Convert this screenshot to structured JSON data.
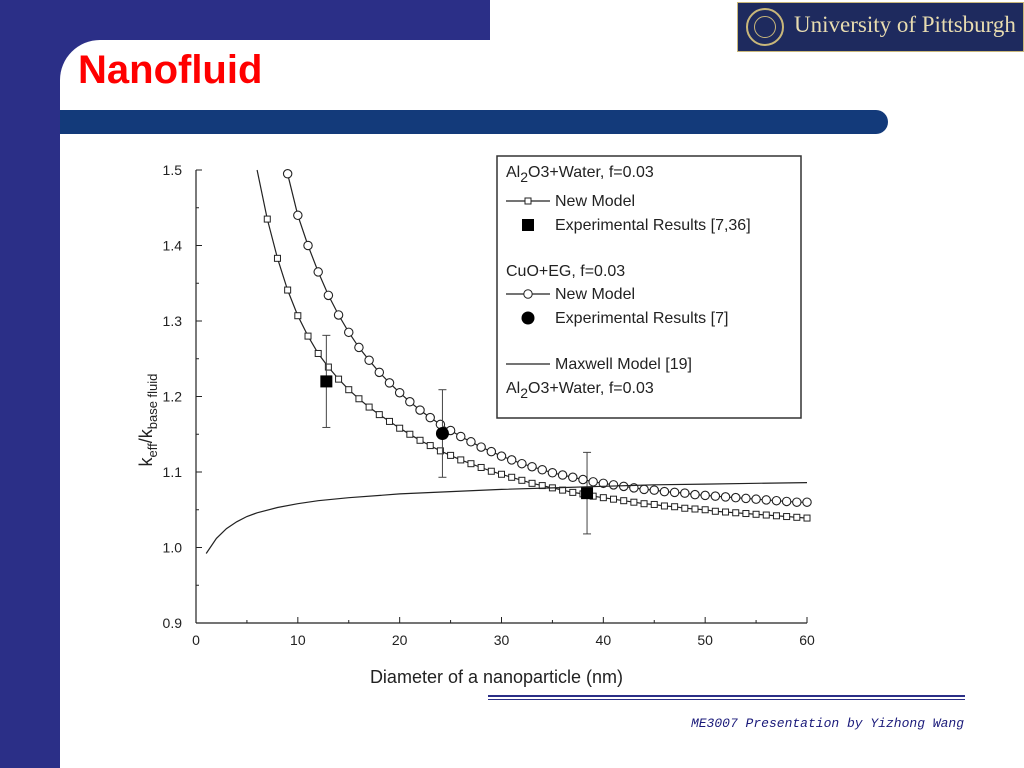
{
  "slide": {
    "title": "Nanofluid",
    "logo_text": "University of Pittsburgh",
    "footer": "ME3007 Presentation by Yizhong Wang"
  },
  "colors": {
    "frame": "#2b2f87",
    "title_bar": "#133a7a",
    "title": "#ff0000",
    "logo_bg": "#1e2a5e",
    "logo_text": "#e8dcb0",
    "footer_text": "#1a1a7a"
  },
  "chart_data": {
    "type": "scatter",
    "xlabel": "Diameter of a nanoparticle (nm)",
    "ylabel": "keff/kbase fluid",
    "xlim": [
      0,
      60
    ],
    "ylim": [
      0.9,
      1.5
    ],
    "xticks": [
      0,
      10,
      20,
      30,
      40,
      50,
      60
    ],
    "yticks": [
      0.9,
      1.0,
      1.1,
      1.2,
      1.3,
      1.4,
      1.5
    ],
    "xtick_labels": [
      "0",
      "10",
      "20",
      "30",
      "40",
      "50",
      "60"
    ],
    "ytick_labels": [
      "0.9",
      "1.0",
      "1.1",
      "1.2",
      "1.3",
      "1.4",
      "1.5"
    ],
    "grid": false,
    "legend_position": "top-right",
    "legend": [
      {
        "text": "Al2O3+Water, f=0.03",
        "kind": "heading"
      },
      {
        "text": "New Model",
        "kind": "line-square"
      },
      {
        "text": "Experimental Results [7,36]",
        "kind": "filled-square"
      },
      {
        "text": "CuO+EG, f=0.03",
        "kind": "heading"
      },
      {
        "text": "New Model",
        "kind": "line-circle"
      },
      {
        "text": "Experimental Results [7]",
        "kind": "filled-circle"
      },
      {
        "text": "Maxwell Model [19]",
        "kind": "line"
      },
      {
        "text": "Al2O3+Water, f=0.03",
        "kind": "heading"
      }
    ],
    "series": [
      {
        "name": "New Model",
        "group": "Al2O3+Water, f=0.03",
        "style": "line-square",
        "x": [
          6,
          7,
          8,
          9,
          10,
          11,
          12,
          13,
          14,
          15,
          16,
          17,
          18,
          19,
          20,
          21,
          22,
          23,
          24,
          25,
          26,
          27,
          28,
          29,
          30,
          31,
          32,
          33,
          34,
          35,
          36,
          37,
          38,
          39,
          40,
          41,
          42,
          43,
          44,
          45,
          46,
          47,
          48,
          49,
          50,
          51,
          52,
          53,
          54,
          55,
          56,
          57,
          58,
          59,
          60
        ],
        "y": [
          1.5,
          1.435,
          1.383,
          1.341,
          1.307,
          1.28,
          1.257,
          1.239,
          1.223,
          1.209,
          1.197,
          1.186,
          1.176,
          1.167,
          1.158,
          1.15,
          1.142,
          1.135,
          1.128,
          1.122,
          1.116,
          1.111,
          1.106,
          1.101,
          1.097,
          1.093,
          1.089,
          1.085,
          1.082,
          1.079,
          1.076,
          1.073,
          1.071,
          1.068,
          1.066,
          1.064,
          1.062,
          1.06,
          1.058,
          1.057,
          1.055,
          1.054,
          1.052,
          1.051,
          1.05,
          1.048,
          1.047,
          1.046,
          1.045,
          1.044,
          1.043,
          1.042,
          1.041,
          1.04,
          1.039
        ],
        "markers_x": [
          7,
          8,
          9,
          10,
          11,
          12,
          13,
          14,
          15,
          16,
          17,
          18,
          19,
          20,
          21,
          22,
          23,
          24,
          25,
          26,
          27,
          28,
          29,
          30,
          31,
          32,
          33,
          34,
          35,
          36,
          37,
          38,
          39,
          40,
          41,
          42,
          43,
          44,
          45,
          46,
          47,
          48,
          49,
          50,
          51,
          52,
          53,
          54,
          55,
          56,
          57,
          58,
          59,
          60
        ]
      },
      {
        "name": "Experimental Results [7,36]",
        "group": "Al2O3+Water, f=0.03",
        "style": "filled-square",
        "x": [
          12.8,
          38.4
        ],
        "y": [
          1.22,
          1.072
        ],
        "yerr": [
          0.061,
          0.054
        ]
      },
      {
        "name": "New Model",
        "group": "CuO+EG, f=0.03",
        "style": "line-circle",
        "x": [
          9,
          10,
          11,
          12,
          13,
          14,
          15,
          16,
          17,
          18,
          19,
          20,
          21,
          22,
          23,
          24,
          25,
          26,
          27,
          28,
          29,
          30,
          31,
          32,
          33,
          34,
          35,
          36,
          37,
          38,
          39,
          40,
          41,
          42,
          43,
          44,
          45,
          46,
          47,
          48,
          49,
          50,
          51,
          52,
          53,
          54,
          55,
          56,
          57,
          58,
          59,
          60
        ],
        "y": [
          1.495,
          1.44,
          1.4,
          1.365,
          1.334,
          1.308,
          1.285,
          1.265,
          1.248,
          1.232,
          1.218,
          1.205,
          1.193,
          1.182,
          1.172,
          1.163,
          1.155,
          1.147,
          1.14,
          1.133,
          1.127,
          1.121,
          1.116,
          1.111,
          1.107,
          1.103,
          1.099,
          1.096,
          1.093,
          1.09,
          1.087,
          1.085,
          1.083,
          1.081,
          1.079,
          1.077,
          1.076,
          1.074,
          1.073,
          1.072,
          1.07,
          1.069,
          1.068,
          1.067,
          1.066,
          1.065,
          1.064,
          1.063,
          1.062,
          1.061,
          1.06,
          1.06
        ]
      },
      {
        "name": "Experimental Results [7]",
        "group": "CuO+EG, f=0.03",
        "style": "filled-circle",
        "x": [
          24.2
        ],
        "y": [
          1.151
        ],
        "yerr": [
          0.058
        ]
      },
      {
        "name": "Maxwell Model [19]",
        "group": "Al2O3+Water, f=0.03",
        "style": "line",
        "x": [
          1,
          2,
          3,
          4,
          5,
          6,
          8,
          10,
          12,
          15,
          20,
          25,
          30,
          35,
          40,
          45,
          50,
          55,
          60
        ],
        "y": [
          0.992,
          1.012,
          1.025,
          1.034,
          1.041,
          1.046,
          1.053,
          1.058,
          1.062,
          1.066,
          1.071,
          1.074,
          1.077,
          1.079,
          1.081,
          1.083,
          1.084,
          1.085,
          1.086
        ]
      }
    ]
  }
}
